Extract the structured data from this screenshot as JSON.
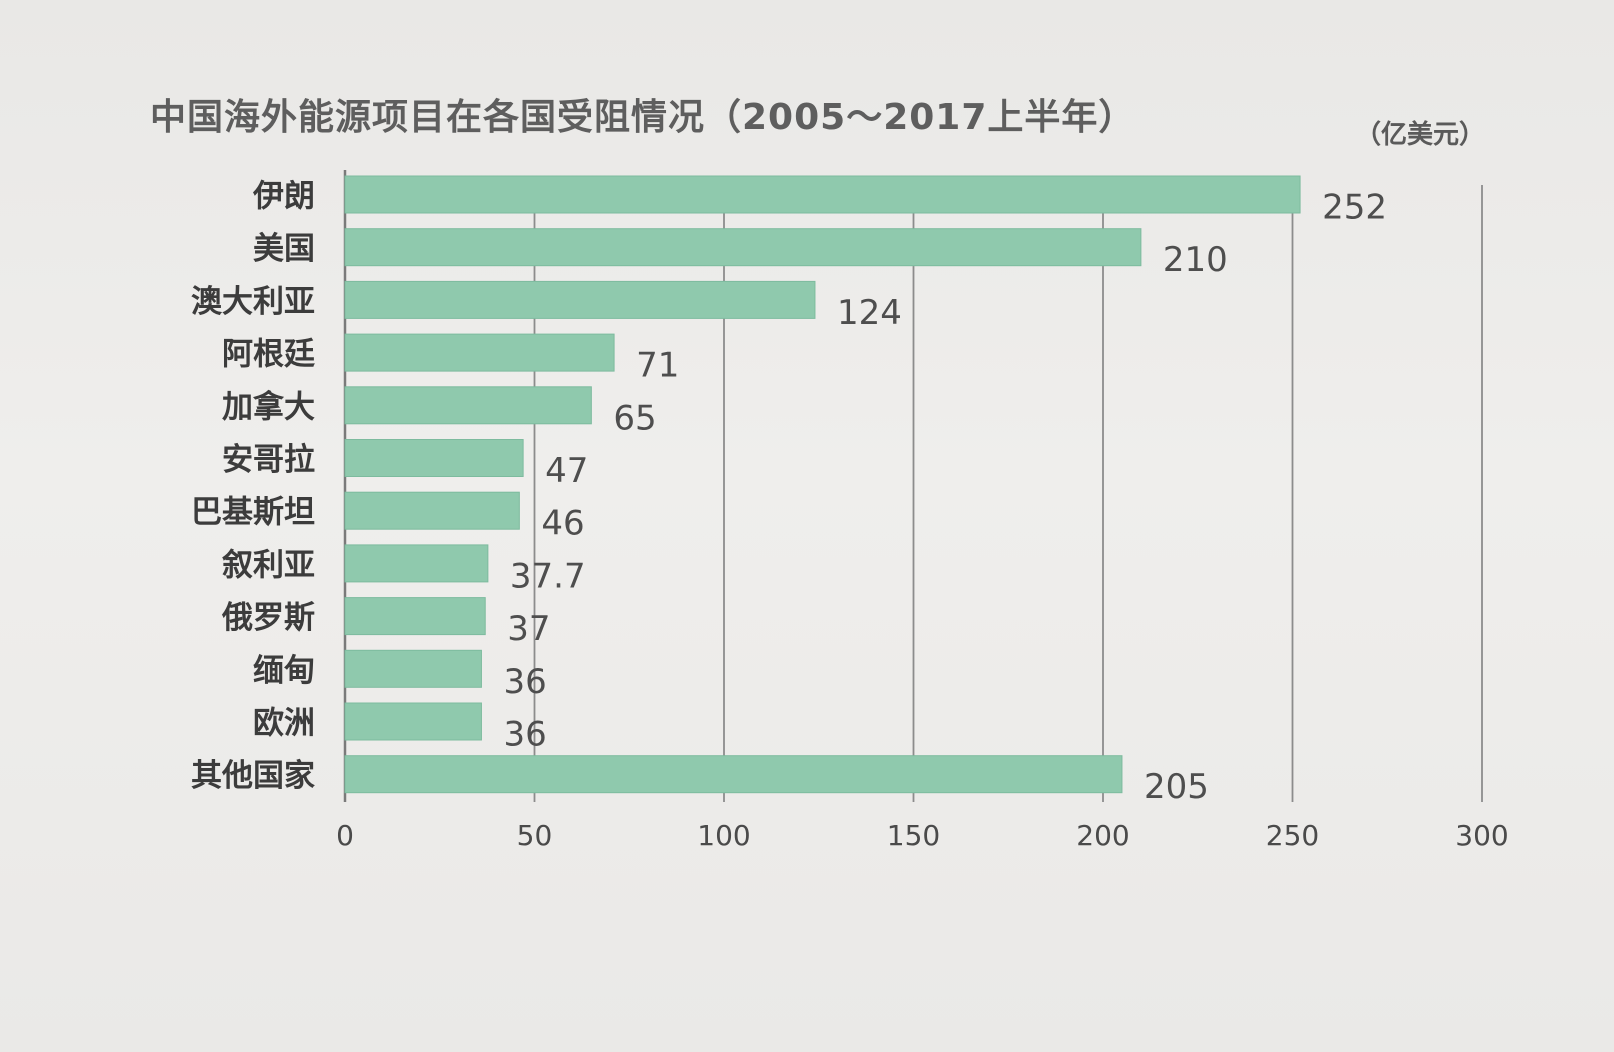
{
  "chart_data": {
    "type": "bar",
    "orientation": "horizontal",
    "title": "中国海外能源项目在各国受阻情况（2005～2017上半年）",
    "unit": "（亿美元）",
    "categories": [
      "伊朗",
      "美国",
      "澳大利亚",
      "阿根廷",
      "加拿大",
      "安哥拉",
      "巴基斯坦",
      "叙利亚",
      "俄罗斯",
      "缅甸",
      "欧洲",
      "其他国家"
    ],
    "values": [
      252,
      210,
      124,
      71,
      65,
      47,
      46,
      37.7,
      37,
      36,
      36,
      205
    ],
    "value_labels": [
      "252",
      "210",
      "124",
      "71",
      "65",
      "47",
      "46",
      "37.7",
      "37",
      "36",
      "36",
      "205"
    ],
    "x_ticks": [
      "0",
      "50",
      "100",
      "150",
      "200",
      "250",
      "300"
    ],
    "xlim": [
      0,
      300
    ],
    "grid": "vertical",
    "bar_color": "#8fc9ad"
  }
}
